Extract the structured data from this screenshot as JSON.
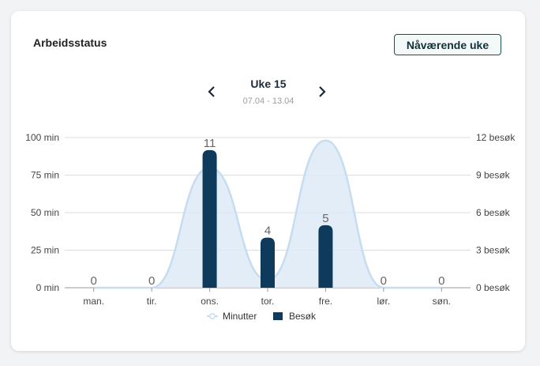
{
  "card": {
    "title": "Arbeidsstatus",
    "current_week_label": "Nåværende uke"
  },
  "week_nav": {
    "title": "Uke 15",
    "range": "07.04 - 13.04",
    "prev_icon": "chevron-left-icon",
    "next_icon": "chevron-right-icon"
  },
  "colors": {
    "minutes_line": "#c6dcf0",
    "minutes_fill": "#deeaf6",
    "visits_bar": "#0e3a5b",
    "button_border": "#1d4f57"
  },
  "chart_data": {
    "type": "bar",
    "categories": [
      "man.",
      "tir.",
      "ons.",
      "tor.",
      "fre.",
      "lør.",
      "søn."
    ],
    "series": [
      {
        "name": "Minutter",
        "type": "area",
        "axis": "left",
        "values": [
          0,
          0,
          80,
          5,
          98,
          0,
          0
        ]
      },
      {
        "name": "Besøk",
        "type": "bar",
        "axis": "right",
        "values": [
          0,
          0,
          11,
          4,
          5,
          0,
          0
        ]
      }
    ],
    "bar_labels": [
      "0",
      "0",
      "11",
      "4",
      "5",
      "0",
      "0"
    ],
    "y_left": {
      "ticks": [
        "0 min",
        "25 min",
        "50 min",
        "75 min",
        "100 min"
      ],
      "ylim": [
        0,
        100
      ]
    },
    "y_right": {
      "ticks": [
        "0 besøk",
        "3 besøk",
        "6 besøk",
        "9 besøk",
        "12 besøk"
      ],
      "ylim": [
        0,
        12
      ]
    },
    "grid": true,
    "legend_position": "bottom"
  }
}
